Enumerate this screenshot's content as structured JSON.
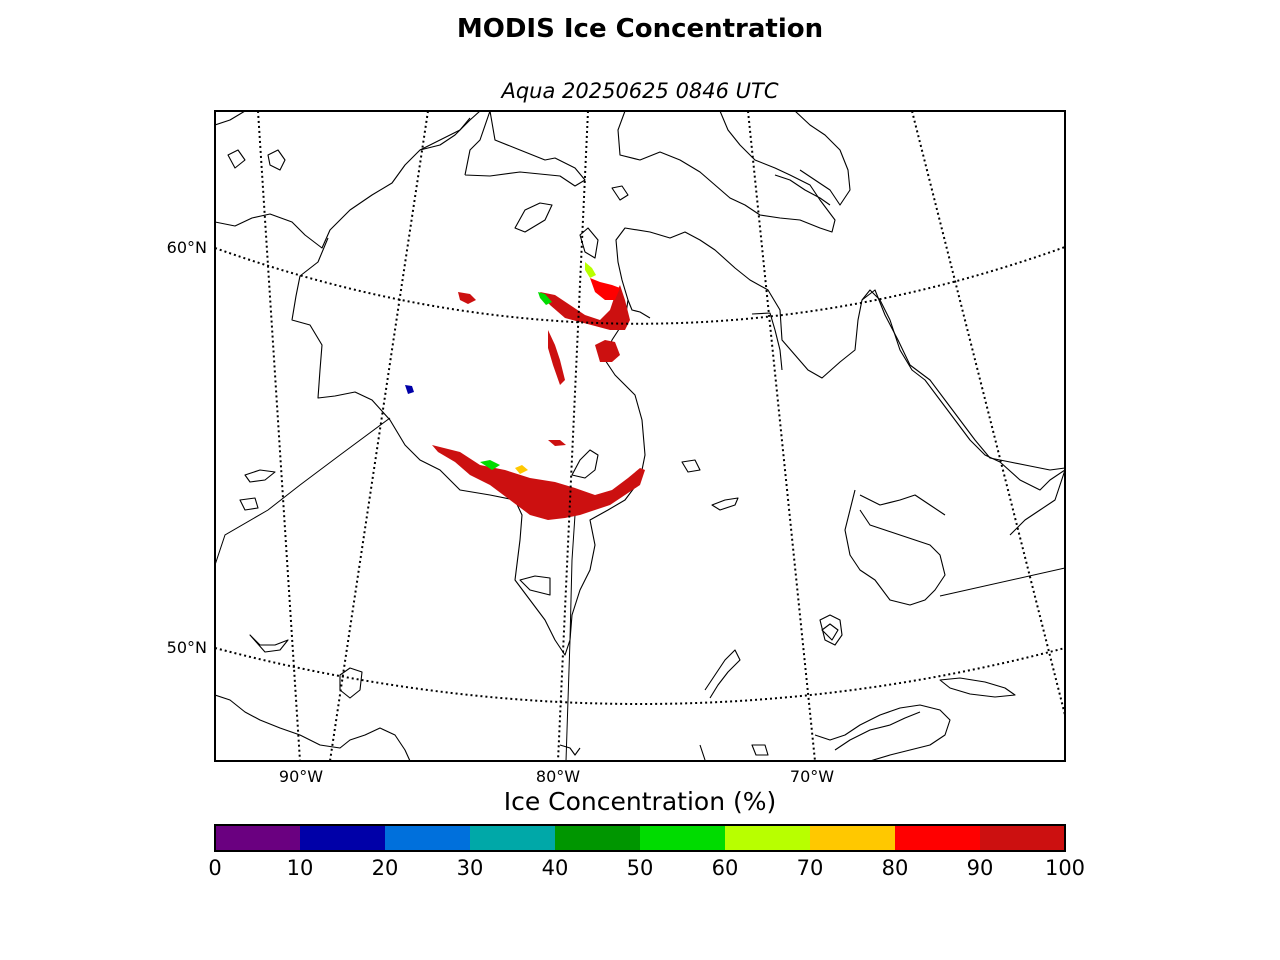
{
  "title": "MODIS Ice Concentration",
  "subtitle": "Aqua 20250625 0846 UTC",
  "lat_labels": [
    "60°N",
    "50°N"
  ],
  "lon_labels": [
    "90°W",
    "80°W",
    "70°W"
  ],
  "colorbar": {
    "title": "Ice Concentration (%)",
    "ticks": [
      "0",
      "10",
      "20",
      "30",
      "40",
      "50",
      "60",
      "70",
      "80",
      "90",
      "100"
    ],
    "colors": [
      "#6a0080",
      "#0000a8",
      "#0070dc",
      "#00a8a8",
      "#009600",
      "#00dc00",
      "#b8ff00",
      "#ffc800",
      "#ff0000",
      "#cc1010"
    ]
  },
  "ice_colors": {
    "high": "#cc1010",
    "mid": "#ff0000",
    "edge": "#00dc00",
    "low": "#0000a8"
  }
}
